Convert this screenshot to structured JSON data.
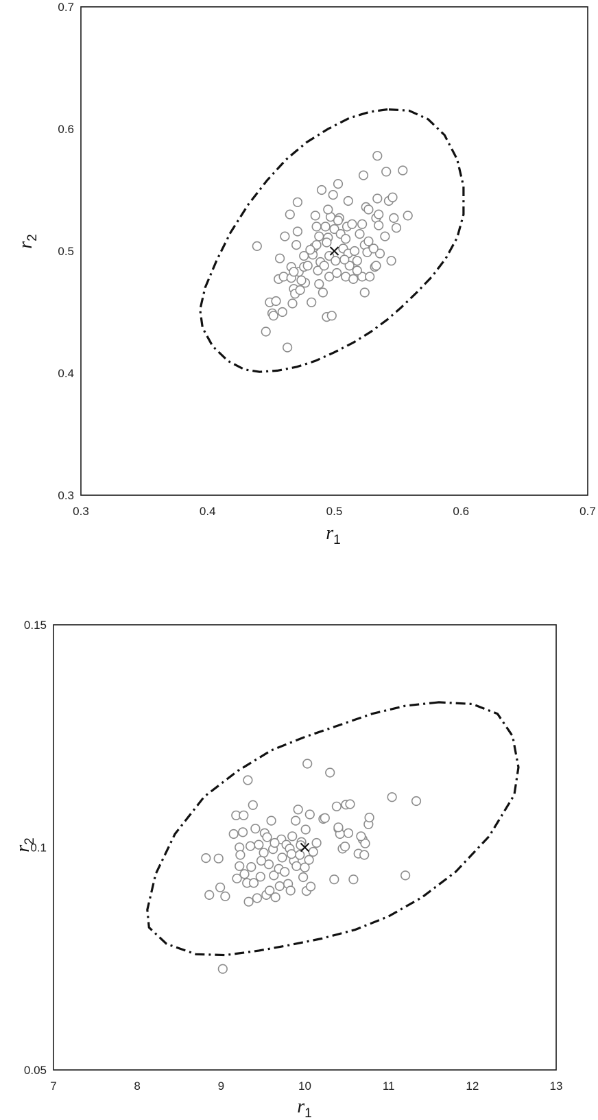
{
  "chart_data": [
    {
      "type": "scatter",
      "title": "",
      "xlabel": {
        "main": "r",
        "sub": "1"
      },
      "ylabel": {
        "main": "r",
        "sub": "2"
      },
      "xlim": [
        0.3,
        0.7
      ],
      "ylim": [
        0.3,
        0.7
      ],
      "xticks": [
        "0.3",
        "0.4",
        "0.5",
        "0.6",
        "0.7"
      ],
      "yticks": [
        "0.3",
        "0.4",
        "0.5",
        "0.6",
        "0.7"
      ],
      "grid": false,
      "center": [
        0.5,
        0.5
      ],
      "points": [
        [
          0.439,
          0.504
        ],
        [
          0.446,
          0.434
        ],
        [
          0.449,
          0.458
        ],
        [
          0.451,
          0.449
        ],
        [
          0.452,
          0.447
        ],
        [
          0.454,
          0.459
        ],
        [
          0.456,
          0.477
        ],
        [
          0.457,
          0.494
        ],
        [
          0.459,
          0.45
        ],
        [
          0.46,
          0.479
        ],
        [
          0.461,
          0.512
        ],
        [
          0.463,
          0.421
        ],
        [
          0.465,
          0.53
        ],
        [
          0.466,
          0.478
        ],
        [
          0.467,
          0.457
        ],
        [
          0.468,
          0.469
        ],
        [
          0.469,
          0.465
        ],
        [
          0.47,
          0.505
        ],
        [
          0.471,
          0.516
        ],
        [
          0.471,
          0.54
        ],
        [
          0.472,
          0.483
        ],
        [
          0.473,
          0.468
        ],
        [
          0.476,
          0.487
        ],
        [
          0.477,
          0.474
        ],
        [
          0.479,
          0.488
        ],
        [
          0.482,
          0.458
        ],
        [
          0.483,
          0.497
        ],
        [
          0.484,
          0.503
        ],
        [
          0.485,
          0.529
        ],
        [
          0.486,
          0.52
        ],
        [
          0.486,
          0.505
        ],
        [
          0.487,
          0.484
        ],
        [
          0.488,
          0.512
        ],
        [
          0.489,
          0.491
        ],
        [
          0.49,
          0.55
        ],
        [
          0.491,
          0.466
        ],
        [
          0.492,
          0.488
        ],
        [
          0.493,
          0.52
        ],
        [
          0.494,
          0.446
        ],
        [
          0.495,
          0.511
        ],
        [
          0.496,
          0.496
        ],
        [
          0.496,
          0.479
        ],
        [
          0.497,
          0.528
        ],
        [
          0.498,
          0.447
        ],
        [
          0.499,
          0.546
        ],
        [
          0.5,
          0.518
        ],
        [
          0.501,
          0.492
        ],
        [
          0.502,
          0.482
        ],
        [
          0.503,
          0.555
        ],
        [
          0.504,
          0.527
        ],
        [
          0.505,
          0.514
        ],
        [
          0.507,
          0.502
        ],
        [
          0.509,
          0.479
        ],
        [
          0.51,
          0.52
        ],
        [
          0.511,
          0.498
        ],
        [
          0.511,
          0.541
        ],
        [
          0.512,
          0.488
        ],
        [
          0.514,
          0.522
        ],
        [
          0.516,
          0.5
        ],
        [
          0.518,
          0.492
        ],
        [
          0.52,
          0.514
        ],
        [
          0.522,
          0.479
        ],
        [
          0.523,
          0.562
        ],
        [
          0.524,
          0.505
        ],
        [
          0.524,
          0.466
        ],
        [
          0.525,
          0.536
        ],
        [
          0.526,
          0.499
        ],
        [
          0.527,
          0.534
        ],
        [
          0.528,
          0.479
        ],
        [
          0.532,
          0.487
        ],
        [
          0.533,
          0.527
        ],
        [
          0.534,
          0.543
        ],
        [
          0.534,
          0.578
        ],
        [
          0.535,
          0.53
        ],
        [
          0.535,
          0.521
        ],
        [
          0.536,
          0.498
        ],
        [
          0.54,
          0.512
        ],
        [
          0.541,
          0.565
        ],
        [
          0.543,
          0.541
        ],
        [
          0.545,
          0.492
        ],
        [
          0.546,
          0.544
        ],
        [
          0.547,
          0.527
        ],
        [
          0.549,
          0.519
        ],
        [
          0.554,
          0.566
        ],
        [
          0.558,
          0.529
        ],
        [
          0.533,
          0.488
        ],
        [
          0.518,
          0.484
        ],
        [
          0.508,
          0.493
        ],
        [
          0.476,
          0.496
        ],
        [
          0.466,
          0.487
        ],
        [
          0.527,
          0.508
        ],
        [
          0.503,
          0.525
        ],
        [
          0.488,
          0.473
        ],
        [
          0.509,
          0.51
        ],
        [
          0.474,
          0.476
        ],
        [
          0.495,
          0.534
        ],
        [
          0.522,
          0.522
        ],
        [
          0.481,
          0.501
        ],
        [
          0.468,
          0.483
        ],
        [
          0.531,
          0.502
        ],
        [
          0.515,
          0.477
        ],
        [
          0.494,
          0.507
        ]
      ],
      "contour": [
        [
          0.542,
          0.616
        ],
        [
          0.528,
          0.614
        ],
        [
          0.512,
          0.609
        ],
        [
          0.495,
          0.6
        ],
        [
          0.478,
          0.589
        ],
        [
          0.462,
          0.575
        ],
        [
          0.447,
          0.558
        ],
        [
          0.432,
          0.538
        ],
        [
          0.418,
          0.515
        ],
        [
          0.407,
          0.492
        ],
        [
          0.398,
          0.47
        ],
        [
          0.394,
          0.452
        ],
        [
          0.396,
          0.437
        ],
        [
          0.404,
          0.422
        ],
        [
          0.416,
          0.41
        ],
        [
          0.429,
          0.403
        ],
        [
          0.441,
          0.401
        ],
        [
          0.455,
          0.402
        ],
        [
          0.47,
          0.405
        ],
        [
          0.485,
          0.41
        ],
        [
          0.5,
          0.417
        ],
        [
          0.515,
          0.425
        ],
        [
          0.529,
          0.434
        ],
        [
          0.542,
          0.444
        ],
        [
          0.553,
          0.454
        ],
        [
          0.565,
          0.466
        ],
        [
          0.577,
          0.479
        ],
        [
          0.588,
          0.494
        ],
        [
          0.597,
          0.511
        ],
        [
          0.602,
          0.53
        ],
        [
          0.602,
          0.553
        ],
        [
          0.597,
          0.575
        ],
        [
          0.587,
          0.595
        ],
        [
          0.574,
          0.608
        ],
        [
          0.559,
          0.615
        ],
        [
          0.542,
          0.616
        ]
      ]
    },
    {
      "type": "scatter",
      "title": "",
      "xlabel": {
        "main": "r",
        "sub": "1"
      },
      "ylabel": {
        "main": "r",
        "sub": "2"
      },
      "xlim": [
        7,
        13
      ],
      "ylim": [
        0.05,
        0.15
      ],
      "xticks": [
        "7",
        "8",
        "9",
        "10",
        "11",
        "12",
        "13"
      ],
      "yticks": [
        "0.05",
        "0.1",
        "0.15"
      ],
      "yticks_values": [
        0.05,
        0.1,
        0.15
      ],
      "grid": false,
      "center": [
        10.0,
        0.1
      ],
      "points": [
        [
          8.82,
          0.0976
        ],
        [
          8.86,
          0.0893
        ],
        [
          8.97,
          0.0975
        ],
        [
          8.99,
          0.091
        ],
        [
          9.05,
          0.089
        ],
        [
          9.02,
          0.0727
        ],
        [
          9.15,
          0.103
        ],
        [
          9.18,
          0.1072
        ],
        [
          9.19,
          0.093
        ],
        [
          9.22,
          0.1
        ],
        [
          9.23,
          0.0983
        ],
        [
          9.26,
          0.1034
        ],
        [
          9.27,
          0.1072
        ],
        [
          9.28,
          0.094
        ],
        [
          9.31,
          0.092
        ],
        [
          9.32,
          0.1151
        ],
        [
          9.33,
          0.0878
        ],
        [
          9.36,
          0.0956
        ],
        [
          9.38,
          0.1095
        ],
        [
          9.39,
          0.092
        ],
        [
          9.41,
          0.1042
        ],
        [
          9.43,
          0.0886
        ],
        [
          9.45,
          0.1006
        ],
        [
          9.47,
          0.0934
        ],
        [
          9.51,
          0.0988
        ],
        [
          9.52,
          0.1032
        ],
        [
          9.54,
          0.0893
        ],
        [
          9.55,
          0.1023
        ],
        [
          9.57,
          0.0962
        ],
        [
          9.58,
          0.0903
        ],
        [
          9.6,
          0.106
        ],
        [
          9.62,
          0.0996
        ],
        [
          9.63,
          0.0937
        ],
        [
          9.65,
          0.0888
        ],
        [
          9.69,
          0.0952
        ],
        [
          9.72,
          0.1018
        ],
        [
          9.73,
          0.0977
        ],
        [
          9.76,
          0.0945
        ],
        [
          9.78,
          0.1006
        ],
        [
          9.8,
          0.0918
        ],
        [
          9.82,
          0.0997
        ],
        [
          9.83,
          0.0903
        ],
        [
          9.85,
          0.1025
        ],
        [
          9.87,
          0.097
        ],
        [
          9.89,
          0.106
        ],
        [
          9.9,
          0.0958
        ],
        [
          9.92,
          0.1085
        ],
        [
          9.94,
          0.0983
        ],
        [
          9.96,
          0.1012
        ],
        [
          9.98,
          0.0933
        ],
        [
          10.0,
          0.0955
        ],
        [
          10.01,
          0.104
        ],
        [
          10.02,
          0.0902
        ],
        [
          10.03,
          0.1188
        ],
        [
          10.05,
          0.0972
        ],
        [
          10.06,
          0.1074
        ],
        [
          10.07,
          0.0912
        ],
        [
          10.22,
          0.1064
        ],
        [
          10.24,
          0.1066
        ],
        [
          10.3,
          0.1168
        ],
        [
          10.35,
          0.0928
        ],
        [
          10.38,
          0.1092
        ],
        [
          10.4,
          0.1042
        ],
        [
          10.42,
          0.103
        ],
        [
          10.45,
          0.0997
        ],
        [
          10.48,
          0.1002
        ],
        [
          10.49,
          0.1096
        ],
        [
          10.52,
          0.1032
        ],
        [
          10.54,
          0.1097
        ],
        [
          10.58,
          0.0928
        ],
        [
          10.64,
          0.0986
        ],
        [
          10.69,
          0.1018
        ],
        [
          10.71,
          0.0983
        ],
        [
          10.72,
          0.1009
        ],
        [
          10.76,
          0.1052
        ],
        [
          10.77,
          0.1067
        ],
        [
          11.04,
          0.1113
        ],
        [
          11.2,
          0.0937
        ],
        [
          11.33,
          0.1104
        ],
        [
          9.48,
          0.097
        ],
        [
          9.64,
          0.101
        ],
        [
          9.95,
          0.1005
        ],
        [
          10.1,
          0.099
        ],
        [
          9.35,
          0.1003
        ],
        [
          9.84,
          0.0985
        ],
        [
          10.14,
          0.101
        ],
        [
          9.7,
          0.0913
        ],
        [
          10.4,
          0.1045
        ],
        [
          9.22,
          0.0958
        ],
        [
          10.67,
          0.1025
        ]
      ],
      "contour": [
        [
          11.6,
          0.1326
        ],
        [
          11.2,
          0.1318
        ],
        [
          10.8,
          0.13
        ],
        [
          10.4,
          0.1274
        ],
        [
          10.0,
          0.1248
        ],
        [
          9.6,
          0.1218
        ],
        [
          9.2,
          0.1172
        ],
        [
          8.8,
          0.1114
        ],
        [
          8.45,
          0.103
        ],
        [
          8.22,
          0.094
        ],
        [
          8.12,
          0.086
        ],
        [
          8.14,
          0.082
        ],
        [
          8.35,
          0.0783
        ],
        [
          8.7,
          0.076
        ],
        [
          9.05,
          0.0758
        ],
        [
          9.45,
          0.0768
        ],
        [
          9.8,
          0.078
        ],
        [
          10.2,
          0.0795
        ],
        [
          10.6,
          0.0815
        ],
        [
          11.0,
          0.0845
        ],
        [
          11.4,
          0.0888
        ],
        [
          11.8,
          0.0945
        ],
        [
          12.2,
          0.1025
        ],
        [
          12.5,
          0.1118
        ],
        [
          12.55,
          0.118
        ],
        [
          12.48,
          0.125
        ],
        [
          12.3,
          0.13
        ],
        [
          12.0,
          0.1322
        ],
        [
          11.6,
          0.1326
        ]
      ]
    }
  ]
}
